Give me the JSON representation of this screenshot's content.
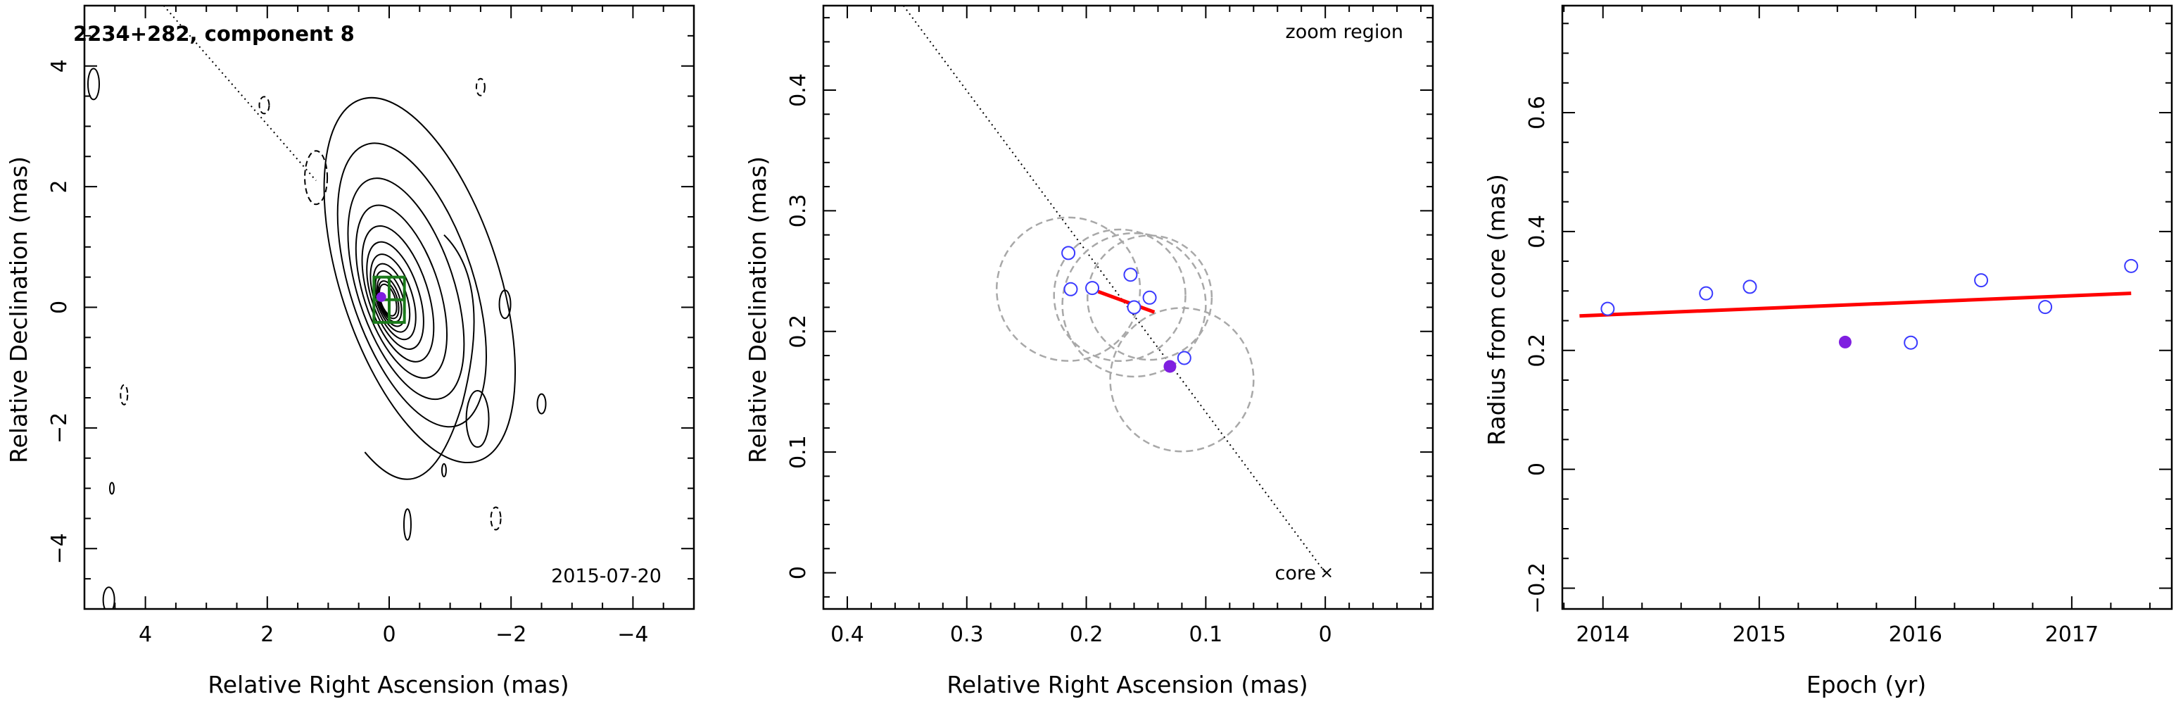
{
  "chart_data": [
    {
      "panel": "map",
      "type": "contour",
      "title": "2234+282, component 8",
      "epoch_label": "2015-07-20",
      "xlabel": "Relative Right Ascension (mas)",
      "ylabel": "Relative Declination (mas)",
      "xlim": [
        5,
        -5
      ],
      "ylim": [
        -5,
        5
      ],
      "xticks": [
        4,
        2,
        0,
        -2,
        -4
      ],
      "yticks": [
        4,
        2,
        0,
        -2,
        -4
      ],
      "xtick_labels": [
        "4",
        "2",
        "0",
        "−2",
        "−4"
      ],
      "ytick_labels": [
        "4",
        "2",
        "0",
        "−2",
        "−4"
      ],
      "jet_axis_line": {
        "from": [
          3.7,
          5
        ],
        "to": [
          1.2,
          2.1
        ],
        "style": "dotted"
      },
      "component_marker": {
        "x": 0.13,
        "y": 0.17,
        "color": "#7f1fe0"
      },
      "zoom_box": {
        "x": [
          0.25,
          -0.25
        ],
        "y": [
          -0.25,
          0.5
        ],
        "color": "#1a7a1a"
      },
      "contour_colors": {
        "positive": "#000000",
        "negative": "#000000"
      }
    },
    {
      "panel": "zoom",
      "type": "scatter",
      "annotation": "zoom region",
      "core_label": "core",
      "xlabel": "Relative Right Ascension (mas)",
      "ylabel": "Relative Declination (mas)",
      "xlim": [
        0.42,
        -0.09
      ],
      "ylim": [
        -0.03,
        0.47
      ],
      "xticks": [
        0.4,
        0.3,
        0.2,
        0.1,
        0
      ],
      "yticks": [
        0,
        0.1,
        0.2,
        0.3,
        0.4
      ],
      "xtick_labels": [
        "0.4",
        "0.3",
        "0.2",
        "0.1",
        "0"
      ],
      "ytick_labels": [
        "0",
        "0.1",
        "0.2",
        "0.3",
        "0.4"
      ],
      "points": [
        {
          "x": 0.215,
          "y": 0.265
        },
        {
          "x": 0.213,
          "y": 0.235
        },
        {
          "x": 0.195,
          "y": 0.236
        },
        {
          "x": 0.163,
          "y": 0.247
        },
        {
          "x": 0.16,
          "y": 0.22
        },
        {
          "x": 0.147,
          "y": 0.228
        },
        {
          "x": 0.118,
          "y": 0.178
        }
      ],
      "highlight_point": {
        "x": 0.13,
        "y": 0.171
      },
      "error_circles": [
        {
          "x": 0.215,
          "y": 0.235,
          "r": 0.06
        },
        {
          "x": 0.172,
          "y": 0.23,
          "r": 0.055
        },
        {
          "x": 0.16,
          "y": 0.222,
          "r": 0.06
        },
        {
          "x": 0.147,
          "y": 0.228,
          "r": 0.052
        },
        {
          "x": 0.12,
          "y": 0.16,
          "r": 0.06
        }
      ],
      "fit_segment": {
        "from": [
          0.19,
          0.233
        ],
        "to": [
          0.143,
          0.216
        ]
      },
      "jet_axis_line": {
        "from": [
          0.353,
          0.47
        ],
        "to": [
          0,
          0
        ]
      },
      "colors": {
        "points": "#3a3aff",
        "highlight": "#7f1fe0",
        "fit": "#ff0000",
        "circles": "#a8a8a8"
      }
    },
    {
      "panel": "radius",
      "type": "scatter",
      "xlabel": "Epoch (yr)",
      "ylabel": "Radius from core (mas)",
      "xlim": [
        2013.74,
        2017.64
      ],
      "ylim": [
        -0.235,
        0.78
      ],
      "xticks": [
        2014,
        2015,
        2016,
        2017
      ],
      "yticks": [
        -0.2,
        0,
        0.2,
        0.4,
        0.6
      ],
      "xtick_labels": [
        "2014",
        "2015",
        "2016",
        "2017"
      ],
      "ytick_labels": [
        "−0.2",
        "0",
        "0.2",
        "0.4",
        "0.6"
      ],
      "points": [
        {
          "x": 2014.03,
          "y": 0.27
        },
        {
          "x": 2014.66,
          "y": 0.296
        },
        {
          "x": 2014.94,
          "y": 0.307
        },
        {
          "x": 2015.97,
          "y": 0.213
        },
        {
          "x": 2016.42,
          "y": 0.318
        },
        {
          "x": 2016.83,
          "y": 0.273
        },
        {
          "x": 2017.38,
          "y": 0.342
        }
      ],
      "highlight_point": {
        "x": 2015.55,
        "y": 0.214
      },
      "fit_line": {
        "x": [
          2013.85,
          2017.38
        ],
        "y": [
          0.258,
          0.296
        ]
      },
      "colors": {
        "points": "#3a3aff",
        "highlight": "#7f1fe0",
        "fit": "#ff0000"
      }
    }
  ]
}
